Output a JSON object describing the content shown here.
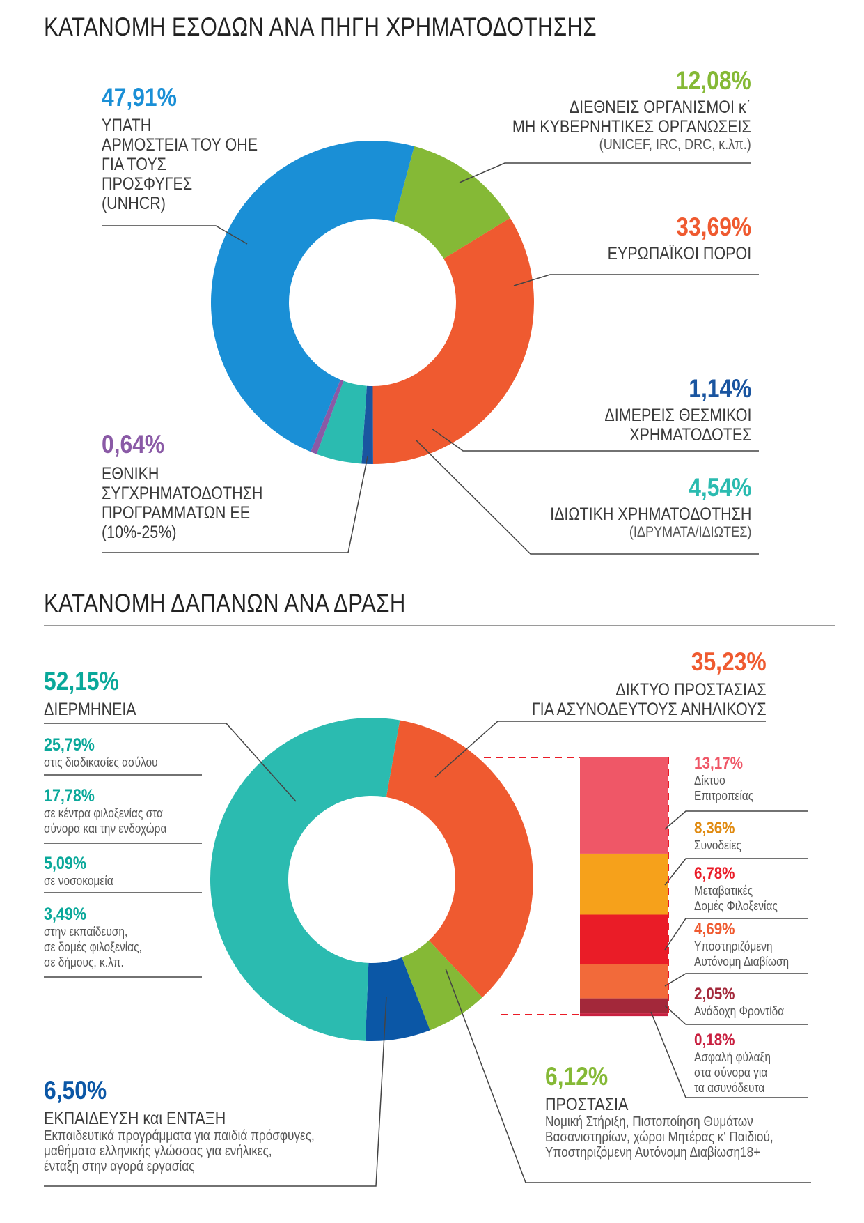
{
  "income": {
    "title": "ΚΑΤΑΝΟΜΗ ΕΣΟΔΩΝ ΑΝΑ ΠΗΓΗ ΧΡΗΜΑΤΟΔΟΤΗΣΗΣ",
    "labels": {
      "unhcr_pct": "47,91%",
      "unhcr_l1": "ΥΠΑΤΗ",
      "unhcr_l2": "ΑΡΜΟΣΤΕΙΑ ΤΟΥ ΟΗΕ",
      "unhcr_l3": "ΓΙΑ ΤΟΥΣ",
      "unhcr_l4": "ΠΡΟΣΦΥΓΕΣ",
      "unhcr_l5": "(UNHCR)",
      "intl_pct": "12,08%",
      "intl_l1": "ΔΙΕΘΝΕΙΣ ΟΡΓΑΝΙΣΜΟΙ κ΄",
      "intl_l2": "ΜΗ ΚΥΒΕΡΝΗΤΙΚΕΣ ΟΡΓΑΝΩΣΕΙΣ",
      "intl_l3": "(UNICEF, IRC, DRC, κ.λπ.)",
      "eu_pct": "33,69%",
      "eu_l1": "ΕΥΡΩΠΑΪΚΟΙ ΠΟΡΟΙ",
      "bil_pct": "1,14%",
      "bil_l1": "ΔΙΜΕΡΕΙΣ ΘΕΣΜΙΚΟΙ",
      "bil_l2": "ΧΡΗΜΑΤΟΔΟΤΕΣ",
      "priv_pct": "4,54%",
      "priv_l1": "ΙΔΙΩΤΙΚΗ ΧΡΗΜΑΤΟΔΟΤΗΣΗ",
      "priv_l2": "(ΙΔΡΥΜΑΤΑ/ΙΔΙΩΤΕΣ)",
      "nat_pct": "0,64%",
      "nat_l1": "ΕΘΝΙΚΗ",
      "nat_l2": "ΣΥΓΧΡΗΜΑΤΟΔΟΤΗΣΗ",
      "nat_l3": "ΠΡΟΓΡΑΜΜΑΤΩΝ ΕΕ",
      "nat_l4": "(10%-25%)"
    }
  },
  "expense": {
    "title": "ΚΑΤΑΝΟΜΗ ΔΑΠΑΝΩΝ ΑΝΑ ΔΡΑΣΗ",
    "labels": {
      "interp_pct": "52,15%",
      "interp_l1": "ΔΙΕΡΜΗΝΕΙΑ",
      "i1_pct": "25,79%",
      "i1_l1": "στις διαδικασίες ασύλου",
      "i2_pct": "17,78%",
      "i2_l1": "σε κέντρα φιλοξενίας στα",
      "i2_l2": "σύνορα και την ενδοχώρα",
      "i3_pct": "5,09%",
      "i3_l1": "σε νοσοκομεία",
      "i4_pct": "3,49%",
      "i4_l1": "στην εκπαίδευση,",
      "i4_l2": "σε δομές φιλοξενίας,",
      "i4_l3": "σε δήμους, κ.λπ.",
      "net_pct": "35,23%",
      "net_l1": "ΔΙΚΤΥΟ ΠΡΟΣΤΑΣΙΑΣ",
      "net_l2": "ΓΙΑ ΑΣΥΝΟΔΕΥΤΟΥΣ ΑΝΗΛΙΚΟΥΣ",
      "edu_pct": "6,50%",
      "edu_l1": "ΕΚΠΑΙΔΕΥΣΗ και ΕΝΤΑΞΗ",
      "edu_l2": "Εκπαιδευτικά προγράμματα για παιδιά πρόσφυγες,",
      "edu_l3": "μαθήματα ελληνικής γλώσσας για ενήλικες,",
      "edu_l4": "ένταξη στην αγορά εργασίας",
      "prot_pct": "6,12%",
      "prot_l1": "ΠΡΟΣΤΑΣΙΑ",
      "prot_l2": "Νομική Στήριξη, Πιστοποίηση Θυμάτων",
      "prot_l3": "Βασανιστηρίων, χώροι Μητέρας κ' Παιδιού,",
      "prot_l4": "Υποστηριζόμενη Αυτόνομη Διαβίωση18+",
      "b1_pct": "13,17%",
      "b1_l1": "Δίκτυο",
      "b1_l2": "Επιτροπείας",
      "b2_pct": "8,36%",
      "b2_l1": "Συνοδείες",
      "b3_pct": "6,78%",
      "b3_l1": "Μεταβατικές",
      "b3_l2": "Δομές Φιλοξενίας",
      "b4_pct": "4,69%",
      "b4_l1": "Υποστηριζόμενη",
      "b4_l2": "Αυτόνομη Διαβίωση",
      "b5_pct": "2,05%",
      "b5_l1": "Ανάδοχη Φροντίδα",
      "b6_pct": "0,18%",
      "b6_l1": "Ασφαλή φύλαξη",
      "b6_l2": "στα σύνορα για",
      "b6_l3": "τα ασυνόδευτα"
    }
  },
  "colors": {
    "blue": "#1a8fd6",
    "green": "#85b936",
    "orange": "#ef5a30",
    "navy": "#1a55a0",
    "teal": "#2bbbb0",
    "purple": "#8a5aa6",
    "teal_dark": "#0aa89a",
    "blue_dark": "#0b57a6",
    "pink": "#ef5767",
    "amber": "#f6a11b",
    "red": "#ea1c27",
    "orange2": "#f26a3a",
    "maroon": "#a3283a",
    "crimson": "#c82040"
  },
  "chart_data": [
    {
      "type": "pie",
      "title": "ΚΑΤΑΝΟΜΗ ΕΣΟΔΩΝ ΑΝΑ ΠΗΓΗ ΧΡΗΜΑΤΟΔΟΤΗΣΗΣ",
      "categories": [
        "ΥΠΑΤΗ ΑΡΜΟΣΤΕΙΑ ΤΟΥ ΟΗΕ ΓΙΑ ΤΟΥΣ ΠΡΟΣΦΥΓΕΣ (UNHCR)",
        "ΔΙΕΘΝΕΙΣ ΟΡΓΑΝΙΣΜΟΙ κ΄ ΜΗ ΚΥΒΕΡΝΗΤΙΚΕΣ ΟΡΓΑΝΩΣΕΙΣ",
        "ΕΥΡΩΠΑΪΚΟΙ ΠΟΡΟΙ",
        "ΔΙΜΕΡΕΙΣ ΘΕΣΜΙΚΟΙ ΧΡΗΜΑΤΟΔΟΤΕΣ",
        "ΙΔΙΩΤΙΚΗ ΧΡΗΜΑΤΟΔΟΤΗΣΗ",
        "ΕΘΝΙΚΗ ΣΥΓΧΡΗΜΑΤΟΔΟΤΗΣΗ ΠΡΟΓΡΑΜΜΑΤΩΝ ΕΕ"
      ],
      "values": [
        47.91,
        12.08,
        33.69,
        1.14,
        4.54,
        0.64
      ],
      "colors": [
        "#1a8fd6",
        "#85b936",
        "#ef5a30",
        "#1a55a0",
        "#2bbbb0",
        "#8a5aa6"
      ],
      "order_clockwise_from": [
        "ΔΙΕΘΝΕΙΣ ΟΡΓΑΝΙΣΜΟΙ κ΄ ΜΗ ΚΥΒΕΡΝΗΤΙΚΕΣ ΟΡΓΑΝΩΣΕΙΣ",
        "ΕΥΡΩΠΑΪΚΟΙ ΠΟΡΟΙ",
        "ΔΙΜΕΡΕΙΣ ΘΕΣΜΙΚΟΙ ΧΡΗΜΑΤΟΔΟΤΕΣ",
        "ΙΔΙΩΤΙΚΗ ΧΡΗΜΑΤΟΔΟΤΗΣΗ",
        "ΕΘΝΙΚΗ ΣΥΓΧΡΗΜΑΤΟΔΟΤΗΣΗ ΠΡΟΓΡΑΜΜΑΤΩΝ ΕΕ",
        "ΥΠΑΤΗ ΑΡΜΟΣΤΕΙΑ ΤΟΥ ΟΗΕ ΓΙΑ ΤΟΥΣ ΠΡΟΣΦΥΓΕΣ (UNHCR)"
      ]
    },
    {
      "type": "pie",
      "title": "ΚΑΤΑΝΟΜΗ ΔΑΠΑΝΩΝ ΑΝΑ ΔΡΑΣΗ",
      "categories": [
        "ΔΙΚΤΥΟ ΠΡΟΣΤΑΣΙΑΣ ΓΙΑ ΑΣΥΝΟΔΕΥΤΟΥΣ ΑΝΗΛΙΚΟΥΣ",
        "ΠΡΟΣΤΑΣΙΑ",
        "ΕΚΠΑΙΔΕΥΣΗ και ΕΝΤΑΞΗ",
        "ΔΙΕΡΜΗΝΕΙΑ"
      ],
      "values": [
        35.23,
        6.12,
        6.5,
        52.15
      ],
      "colors": [
        "#ef5a30",
        "#85b936",
        "#0b57a6",
        "#2bbbb0"
      ],
      "sub_breakdown": {
        "ΔΙΕΡΜΗΝΕΙΑ": {
          "categories": [
            "στις διαδικασίες ασύλου",
            "σε κέντρα φιλοξενίας στα σύνορα και την ενδοχώρα",
            "σε νοσοκομεία",
            "στην εκπαίδευση, σε δομές φιλοξενίας, σε δήμους, κ.λπ."
          ],
          "values": [
            25.79,
            17.78,
            5.09,
            3.49
          ]
        }
      }
    },
    {
      "type": "bar",
      "stacked": true,
      "title": "",
      "categories": [
        "Δίκτυο Επιτροπείας",
        "Συνοδείες",
        "Μεταβατικές Δομές Φιλοξενίας",
        "Υποστηριζόμενη Αυτόνομη Διαβίωση",
        "Ανάδοχη Φροντίδα",
        "Ασφαλή φύλαξη στα σύνορα για τα ασυνόδευτα"
      ],
      "values": [
        13.17,
        8.36,
        6.78,
        4.69,
        2.05,
        0.18
      ],
      "colors": [
        "#ef5767",
        "#f6a11b",
        "#ea1c27",
        "#f26a3a",
        "#a3283a",
        "#c82040"
      ],
      "part_of": "ΔΙΚΤΥΟ ΠΡΟΣΤΑΣΙΑΣ ΓΙΑ ΑΣΥΝΟΔΕΥΤΟΥΣ ΑΝΗΛΙΚΟΥΣ"
    }
  ]
}
